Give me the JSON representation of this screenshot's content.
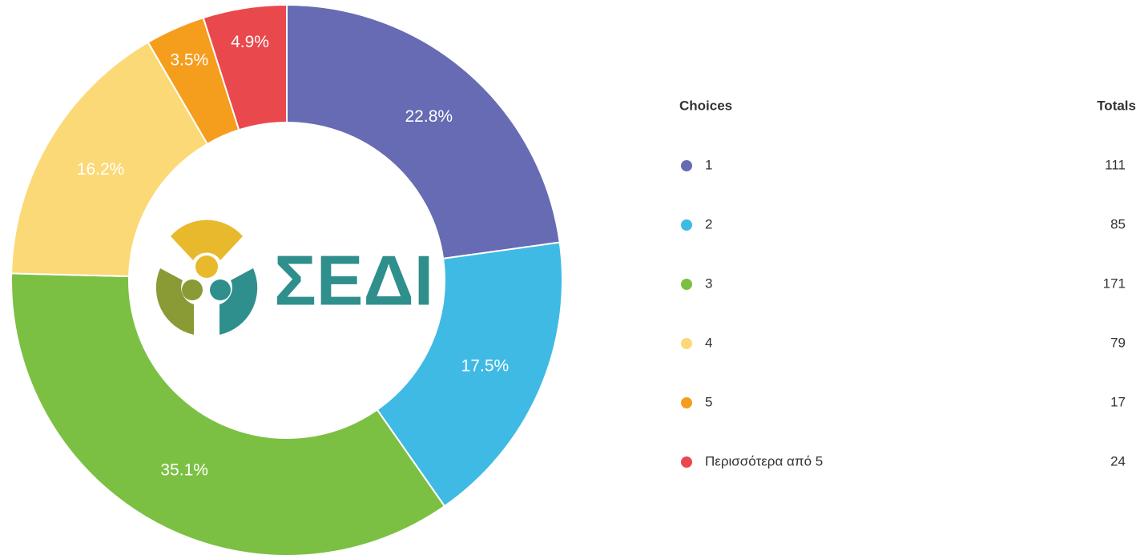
{
  "chart_data": {
    "type": "donut",
    "categories": [
      "1",
      "2",
      "3",
      "4",
      "5",
      "Περισσότερα από 5"
    ],
    "values": [
      22.8,
      17.5,
      35.1,
      16.2,
      3.5,
      4.9
    ],
    "value_labels": [
      "22.8%",
      "17.5%",
      "35.1%",
      "16.2%",
      "3.5%",
      "4.9%"
    ],
    "colors": [
      "#666bb3",
      "#3fbae4",
      "#7cc043",
      "#fcd977",
      "#f59e1e",
      "#e9484c"
    ],
    "legend_header": "Choices",
    "totals_header": "Totals",
    "totals": [
      111,
      85,
      171,
      79,
      17,
      24
    ],
    "logo_text": "ΣΕΔΙ"
  }
}
